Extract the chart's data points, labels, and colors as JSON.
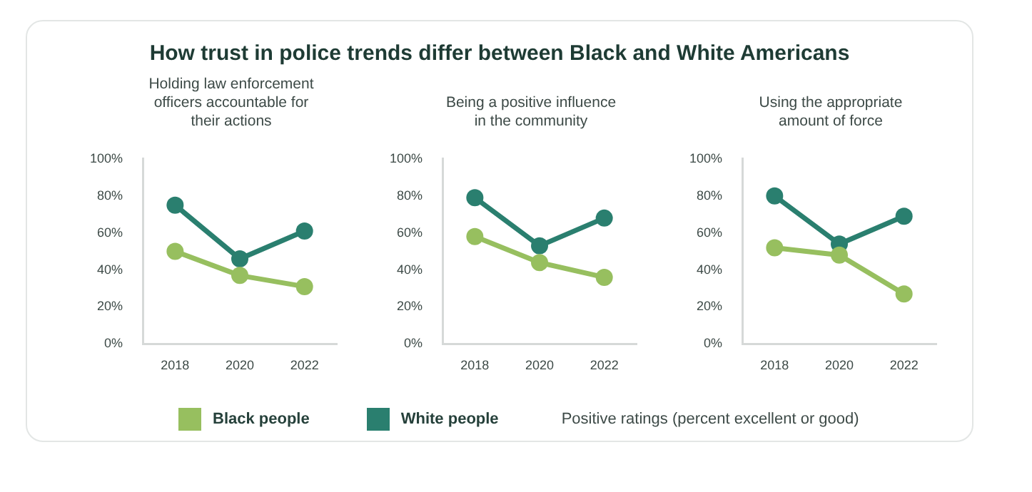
{
  "chart_data": [
    {
      "type": "line",
      "title": "How trust in police trends differ between Black and White Americans",
      "subtitle": "Holding law enforcement officers accountable for their actions",
      "categories": [
        "2018",
        "2020",
        "2022"
      ],
      "series": [
        {
          "name": "Black people",
          "color": "#97bf5f",
          "values": [
            50,
            37,
            31
          ]
        },
        {
          "name": "White people",
          "color": "#2a7f6f",
          "values": [
            75,
            46,
            61
          ]
        }
      ],
      "ylim": [
        0,
        100
      ],
      "yticks": [
        {
          "value": 0,
          "label": "0%"
        },
        {
          "value": 20,
          "label": "20%"
        },
        {
          "value": 40,
          "label": "40%"
        },
        {
          "value": 60,
          "label": "60%"
        },
        {
          "value": 80,
          "label": "80%"
        },
        {
          "value": 100,
          "label": "100%"
        }
      ],
      "marker": "circle",
      "legend": "bottom",
      "annotations": [
        "Positive ratings (percent excellent or good)"
      ]
    },
    {
      "type": "line",
      "subtitle": "Being a positive influence in the community",
      "categories": [
        "2018",
        "2020",
        "2022"
      ],
      "series": [
        {
          "color": "#97bf5f",
          "values": [
            58,
            44,
            36
          ]
        },
        {
          "color": "#2a7f6f",
          "values": [
            79,
            53,
            68
          ]
        }
      ],
      "ylim": [
        0,
        100
      ],
      "yticks": [
        {
          "value": 0,
          "label": "0%"
        },
        {
          "value": 20,
          "label": "20%"
        },
        {
          "value": 40,
          "label": "40%"
        },
        {
          "value": 60,
          "label": "60%"
        },
        {
          "value": 80,
          "label": "80%"
        },
        {
          "value": 100,
          "label": "100%"
        }
      ],
      "marker": "circle"
    },
    {
      "type": "line",
      "subtitle": "Using the appropriate amount of force",
      "categories": [
        "2018",
        "2020",
        "2022"
      ],
      "series": [
        {
          "color": "#97bf5f",
          "values": [
            52,
            48,
            27
          ]
        },
        {
          "color": "#2a7f6f",
          "values": [
            80,
            54,
            69
          ]
        }
      ],
      "ylim": [
        0,
        100
      ],
      "yticks": [
        {
          "value": 0,
          "label": "0%"
        },
        {
          "value": 20,
          "label": "20%"
        },
        {
          "value": 40,
          "label": "40%"
        },
        {
          "value": 60,
          "label": "60%"
        },
        {
          "value": 80,
          "label": "80%"
        },
        {
          "value": 100,
          "label": "100%"
        }
      ],
      "marker": "circle"
    }
  ]
}
